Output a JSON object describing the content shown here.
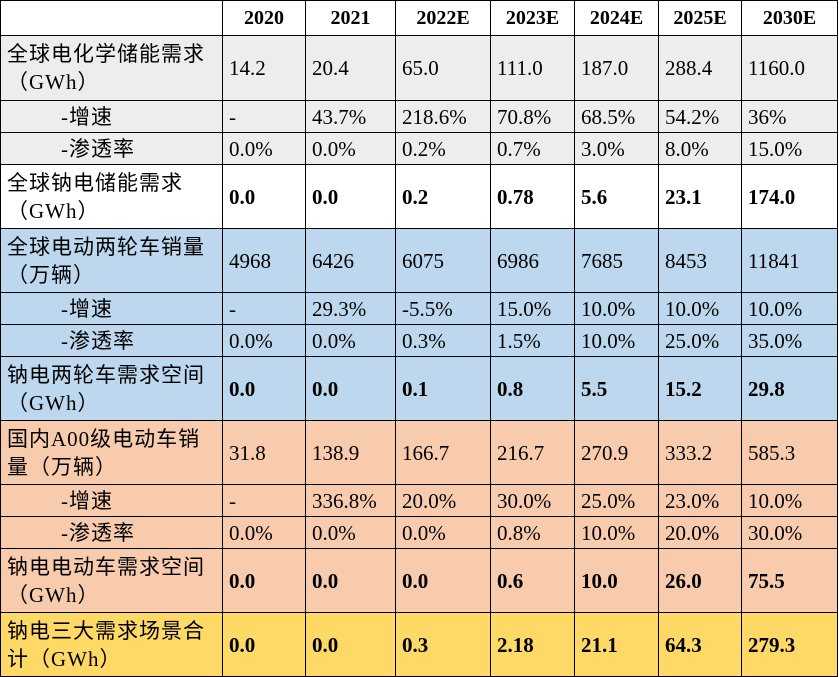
{
  "table": {
    "header": [
      "2020",
      "2021",
      "2022E",
      "2023E",
      "2024E",
      "2025E",
      "2030E"
    ],
    "rows": [
      [
        "全球电化学储能需求（GWh）",
        "14.2",
        "20.4",
        "65.0",
        "111.0",
        "187.0",
        "288.4",
        "1160.0"
      ],
      [
        "-增速",
        "-",
        "43.7%",
        "218.6%",
        "70.8%",
        "68.5%",
        "54.2%",
        "36%"
      ],
      [
        "-渗透率",
        "0.0%",
        "0.0%",
        "0.2%",
        "0.7%",
        "3.0%",
        "8.0%",
        "15.0%"
      ],
      [
        "全球钠电储能需求（GWh）",
        "0.0",
        "0.0",
        "0.2",
        "0.78",
        "5.6",
        "23.1",
        "174.0"
      ],
      [
        "全球电动两轮车销量（万辆）",
        "4968",
        "6426",
        "6075",
        "6986",
        "7685",
        "8453",
        "11841"
      ],
      [
        "-增速",
        "-",
        "29.3%",
        "-5.5%",
        "15.0%",
        "10.0%",
        "10.0%",
        "10.0%"
      ],
      [
        "-渗透率",
        "0.0%",
        "0.0%",
        "0.3%",
        "1.5%",
        "10.0%",
        "25.0%",
        "35.0%"
      ],
      [
        "钠电两轮车需求空间（GWh）",
        "0.0",
        "0.0",
        "0.1",
        "0.8",
        "5.5",
        "15.2",
        "29.8"
      ],
      [
        "国内A00级电动车销量（万辆）",
        "31.8",
        "138.9",
        "166.7",
        "216.7",
        "270.9",
        "333.2",
        "585.3"
      ],
      [
        "-增速",
        "-",
        "336.8%",
        "20.0%",
        "30.0%",
        "25.0%",
        "23.0%",
        "10.0%"
      ],
      [
        "-渗透率",
        "0.0%",
        "0.0%",
        "0.0%",
        "0.8%",
        "10.0%",
        "20.0%",
        "30.0%"
      ],
      [
        "钠电电动车需求空间（GWh）",
        "0.0",
        "0.0",
        "0.0",
        "0.6",
        "10.0",
        "26.0",
        "75.5"
      ],
      [
        "钠电三大需求场景合计（GWh）",
        "0.0",
        "0.0",
        "0.3",
        "2.18",
        "21.1",
        "64.3",
        "279.3"
      ]
    ]
  }
}
